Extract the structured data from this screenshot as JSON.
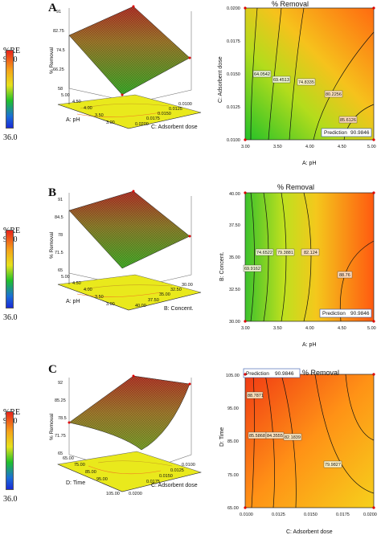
{
  "panels": [
    {
      "letter": "A",
      "legend": {
        "title": "%RE",
        "max": "92.0",
        "min": "36.0"
      },
      "surface": {
        "zlabel": "% Removal",
        "zticks": [
          "91",
          "82.75",
          "74.5",
          "66.25",
          "58"
        ],
        "x1label": "A: pH",
        "x1ticks": [
          "5.00",
          "4.50",
          "4.00",
          "3.50",
          "3.00"
        ],
        "x2label": "C: Adsorbent dose",
        "x2ticks": [
          "0.0100",
          "0.0125",
          "0.0150",
          "0.0175",
          "0.0200"
        ]
      },
      "contour": {
        "title": "% Removal",
        "xlabel": "A: pH",
        "ylabel": "C: Adsorbent dose",
        "xticks": [
          "3.00",
          "3.50",
          "4.00",
          "4.50",
          "5.00"
        ],
        "yticks": [
          "0.0100",
          "0.0125",
          "0.0150",
          "0.0175",
          "0.0200"
        ],
        "levels": [
          "64.0542",
          "69.4513",
          "74.8335",
          "80.2256",
          "85.6126"
        ],
        "prediction_label": "Prediction",
        "prediction_value": "90.9846"
      }
    },
    {
      "letter": "B",
      "legend": {
        "title": "%RE",
        "max": "92.0",
        "min": "36.0"
      },
      "surface": {
        "zlabel": "% Removal",
        "zticks": [
          "91",
          "84.5",
          "78",
          "71.5",
          "65"
        ],
        "x1label": "A: pH",
        "x1ticks": [
          "5.00",
          "4.50",
          "4.00",
          "3.50",
          "3.00"
        ],
        "x2label": "B: Concent.",
        "x2ticks": [
          "30.00",
          "32.50",
          "35.00",
          "37.50",
          "40.00"
        ]
      },
      "contour": {
        "title": "% Removal",
        "xlabel": "A: pH",
        "ylabel": "B: Concent.",
        "xticks": [
          "3.00",
          "3.50",
          "4.00",
          "4.50",
          "5.00"
        ],
        "yticks": [
          "30.00",
          "32.50",
          "35.00",
          "37.50",
          "40.00"
        ],
        "levels": [
          "69.9162",
          "74.6522",
          "79.3881",
          "82.124",
          "88.76"
        ],
        "prediction_label": "Prediction",
        "prediction_value": "90.9846"
      }
    },
    {
      "letter": "C",
      "legend": {
        "title": "%RE",
        "max": "92.0",
        "min": "36.0"
      },
      "surface": {
        "zlabel": "% Removal",
        "zticks": [
          "92",
          "85.25",
          "78.5",
          "71.75",
          "65"
        ],
        "x1label": "D: Time",
        "x1ticks": [
          "65.00",
          "75.00",
          "85.00",
          "95.00",
          "105.00"
        ],
        "x2label": "C: Adsorbent dose",
        "x2ticks": [
          "0.0100",
          "0.0125",
          "0.0150",
          "0.0175",
          "0.0200"
        ]
      },
      "contour": {
        "title": "% Removal",
        "xlabel": "C: Adsorbent dose",
        "ylabel": "D: Time",
        "xticks": [
          "0.0100",
          "0.0125",
          "0.0150",
          "0.0175",
          "0.0200"
        ],
        "yticks": [
          "65.00",
          "75.00",
          "85.00",
          "95.00",
          "105.00"
        ],
        "levels": [
          "88.7871",
          "85.5868",
          "84.3555",
          "82.1839",
          "79.9827"
        ],
        "prediction_label": "Prediction",
        "prediction_value": "90.9846"
      }
    }
  ],
  "chart_data": [
    {
      "type": "surface",
      "panel": "A",
      "x": "A: pH",
      "y": "C: Adsorbent dose",
      "z": "% Removal",
      "zlim": [
        58,
        91
      ],
      "colorbar": {
        "title": "%RE",
        "range": [
          36.0,
          92.0
        ]
      }
    },
    {
      "type": "contour",
      "panel": "A",
      "title": "% Removal",
      "xlabel": "A: pH",
      "ylabel": "C: Adsorbent dose",
      "xlim": [
        3.0,
        5.0
      ],
      "ylim": [
        0.01,
        0.02
      ],
      "contour_levels": [
        64.0542,
        69.4513,
        74.8335,
        80.2256,
        85.6126
      ],
      "prediction": 90.9846
    },
    {
      "type": "surface",
      "panel": "B",
      "x": "A: pH",
      "y": "B: Concent.",
      "z": "% Removal",
      "zlim": [
        65,
        91
      ],
      "colorbar": {
        "title": "%RE",
        "range": [
          36.0,
          92.0
        ]
      }
    },
    {
      "type": "contour",
      "panel": "B",
      "title": "% Removal",
      "xlabel": "A: pH",
      "ylabel": "B: Concent.",
      "xlim": [
        3.0,
        5.0
      ],
      "ylim": [
        30.0,
        40.0
      ],
      "contour_levels": [
        69.9162,
        74.6522,
        79.3881,
        82.124,
        88.76
      ],
      "prediction": 90.9846
    },
    {
      "type": "surface",
      "panel": "C",
      "x": "D: Time",
      "y": "C: Adsorbent dose",
      "z": "% Removal",
      "zlim": [
        65,
        92
      ],
      "colorbar": {
        "title": "%RE",
        "range": [
          36.0,
          92.0
        ]
      }
    },
    {
      "type": "contour",
      "panel": "C",
      "title": "% Removal",
      "xlabel": "C: Adsorbent dose",
      "ylabel": "D: Time",
      "xlim": [
        0.01,
        0.02
      ],
      "ylim": [
        65.0,
        105.0
      ],
      "contour_levels": [
        88.7871,
        85.5868,
        84.3555,
        82.1839,
        79.9827
      ],
      "prediction": 90.9846
    }
  ]
}
